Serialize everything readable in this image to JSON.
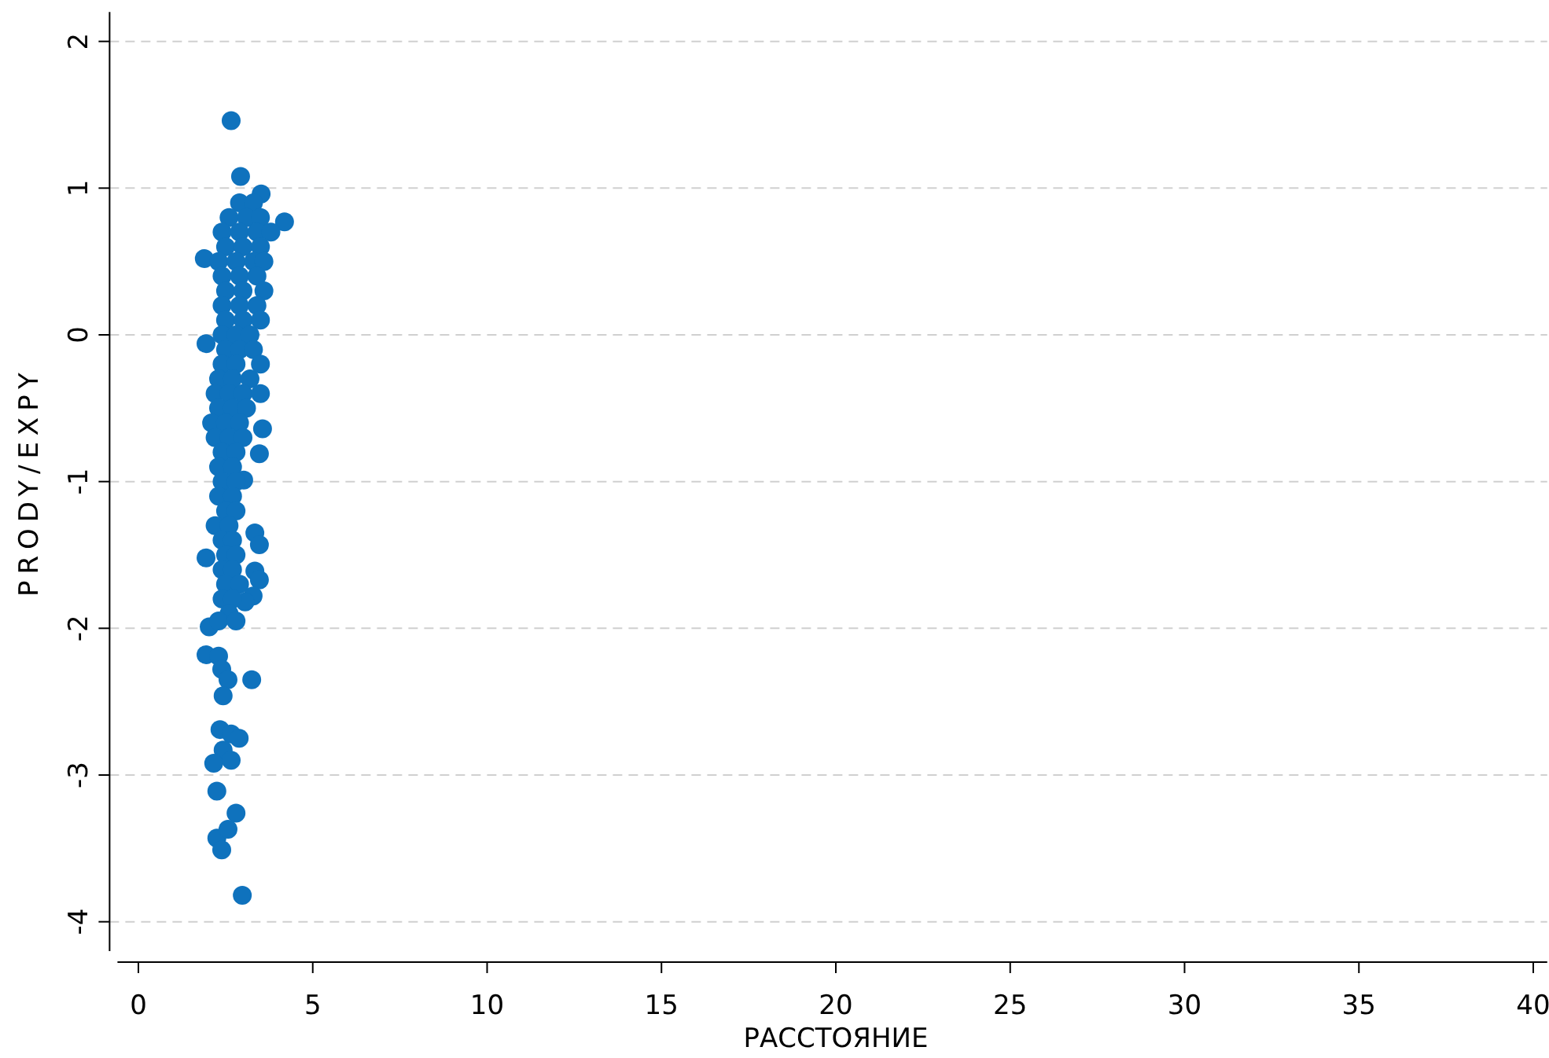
{
  "chart_data": {
    "type": "scatter",
    "xlabel": "РАССТОЯНИЕ",
    "ylabel": "PRODY/EXPY",
    "xlim": [
      -0.6,
      40.4
    ],
    "xticks": [
      0,
      5,
      10,
      15,
      20,
      25,
      30,
      35,
      40
    ],
    "ylim": [
      -4.2,
      2.2
    ],
    "yticks": [
      -4,
      -3,
      -2,
      -1,
      0,
      1,
      2
    ],
    "grid": "y",
    "marker": "circle",
    "series": [
      {
        "color": "#0f72bd",
        "x": [
          2.66,
          2.93,
          4.19,
          1.89,
          3.52,
          1.94,
          3.56,
          3.47,
          3.02,
          1.94,
          3.34,
          3.47,
          3.34,
          3.47,
          3.29,
          3.06,
          2.03,
          1.94,
          2.3,
          2.39,
          2.57,
          3.25,
          2.43,
          2.34,
          2.66,
          2.89,
          2.43,
          2.16,
          2.66,
          2.25,
          2.8,
          2.25,
          2.57,
          2.39,
          2.98,
          2.9,
          3.3,
          2.6,
          3.1,
          3.5,
          2.4,
          2.9,
          3.4,
          3.8,
          2.5,
          3.0,
          3.5,
          2.3,
          2.8,
          3.3,
          3.6,
          2.4,
          2.9,
          3.4,
          2.5,
          3.0,
          3.6,
          2.4,
          2.9,
          3.4,
          2.5,
          3.0,
          3.5,
          2.4,
          2.8,
          3.2,
          2.5,
          2.9,
          3.3,
          2.4,
          2.8,
          3.5,
          2.3,
          2.7,
          3.2,
          2.2,
          2.6,
          3.0,
          3.5,
          2.3,
          2.7,
          3.1,
          2.1,
          2.5,
          2.9,
          2.2,
          2.6,
          3.0,
          2.4,
          2.8,
          2.3,
          2.7,
          2.4,
          2.8,
          2.3,
          2.7,
          2.5,
          2.8,
          2.2,
          2.6,
          2.4,
          2.7,
          2.5,
          2.8,
          2.4,
          2.7,
          2.5,
          2.9,
          2.4,
          2.7,
          2.6,
          2.3,
          2.8
        ],
        "values": [
          1.46,
          1.08,
          0.77,
          0.52,
          0.96,
          -0.06,
          -0.64,
          -0.81,
          -0.99,
          -1.52,
          -1.35,
          -1.43,
          -1.61,
          -1.67,
          -1.78,
          -1.82,
          -1.99,
          -2.18,
          -2.19,
          -2.28,
          -2.35,
          -2.35,
          -2.46,
          -2.69,
          -2.72,
          -2.75,
          -2.83,
          -2.92,
          -2.9,
          -3.11,
          -3.26,
          -3.43,
          -3.37,
          -3.51,
          -3.82,
          0.9,
          0.9,
          0.8,
          0.8,
          0.8,
          0.7,
          0.7,
          0.7,
          0.7,
          0.6,
          0.6,
          0.6,
          0.5,
          0.5,
          0.5,
          0.5,
          0.4,
          0.4,
          0.4,
          0.3,
          0.3,
          0.3,
          0.2,
          0.2,
          0.2,
          0.1,
          0.1,
          0.1,
          0,
          0,
          0,
          -0.1,
          -0.1,
          -0.1,
          -0.2,
          -0.2,
          -0.2,
          -0.3,
          -0.3,
          -0.3,
          -0.4,
          -0.4,
          -0.4,
          -0.4,
          -0.5,
          -0.5,
          -0.5,
          -0.6,
          -0.6,
          -0.6,
          -0.7,
          -0.7,
          -0.7,
          -0.8,
          -0.8,
          -0.9,
          -0.9,
          -1.0,
          -1.0,
          -1.1,
          -1.1,
          -1.2,
          -1.2,
          -1.3,
          -1.3,
          -1.4,
          -1.4,
          -1.5,
          -1.5,
          -1.6,
          -1.6,
          -1.7,
          -1.7,
          -1.8,
          -1.8,
          -1.9,
          -1.95,
          -1.95
        ]
      }
    ]
  }
}
